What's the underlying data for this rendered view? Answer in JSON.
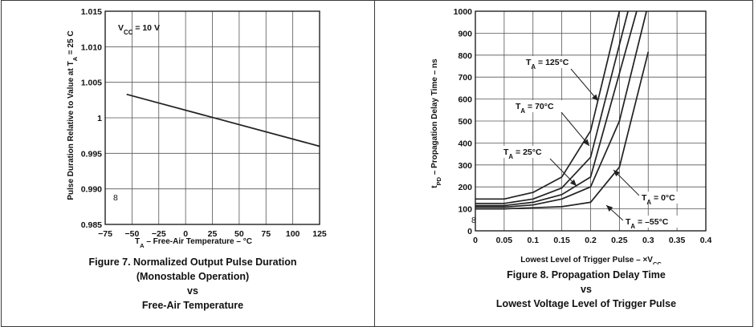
{
  "chart_data": [
    {
      "type": "line",
      "caption": [
        "Figure 7. Normalized Output Pulse Duration",
        "(Monostable Operation)",
        "vs",
        "Free-Air Temperature"
      ],
      "xlabel": "T_A – Free-Air Temperature – °C",
      "ylabel": "Pulse Duration Relative to Value at T_A = 25 C",
      "xlim": [
        -75,
        125
      ],
      "ylim": [
        0.985,
        1.015
      ],
      "xticks": [
        -75,
        -50,
        -25,
        0,
        25,
        50,
        75,
        100,
        125
      ],
      "xtick_labels": [
        "−75",
        "−50",
        "−25",
        "0",
        "25",
        "50",
        "75",
        "100",
        "125"
      ],
      "yticks": [
        0.985,
        0.99,
        0.995,
        1.0,
        1.005,
        1.01,
        1.015
      ],
      "ytick_labels": [
        "0.985",
        "0.990",
        "0.995",
        "1",
        "1.005",
        "1.010",
        "1.015"
      ],
      "grid": true,
      "annotations": [
        {
          "text": "V_CC = 10 V"
        },
        {
          "text": "8"
        }
      ],
      "series": [
        {
          "x": [
            -55,
            125
          ],
          "values": [
            1.0033,
            0.996
          ]
        }
      ]
    },
    {
      "type": "line",
      "caption": [
        "Figure 8. Propagation Delay Time",
        "vs",
        "Lowest Voltage Level of Trigger Pulse"
      ],
      "xlabel": "Lowest Level of Trigger Pulse – ×V_CC",
      "ylabel": "t_PD – Propagation Delay Time – ns",
      "xlim": [
        0,
        0.4
      ],
      "ylim": [
        0,
        1000
      ],
      "xticks": [
        0,
        0.05,
        0.1,
        0.15,
        0.2,
        0.25,
        0.3,
        0.35,
        0.4
      ],
      "xtick_labels": [
        "0",
        "0.05",
        "0.1",
        "0.15",
        "0.2",
        "0.25",
        "0.3",
        "0.35",
        "0.4"
      ],
      "yticks": [
        0,
        100,
        200,
        300,
        400,
        500,
        600,
        700,
        800,
        900,
        1000
      ],
      "ytick_labels": [
        "0",
        "100",
        "200",
        "300",
        "400",
        "500",
        "600",
        "700",
        "800",
        "900",
        "1000"
      ],
      "grid": true,
      "annotations": [
        {
          "text": "8"
        }
      ],
      "series": [
        {
          "name": "T_A = 125°C",
          "label_pos": "upper",
          "x": [
            0,
            0.05,
            0.1,
            0.15,
            0.2,
            0.25
          ],
          "values": [
            145,
            145,
            175,
            245,
            455,
            1000
          ]
        },
        {
          "name": "T_A = 70°C",
          "label_pos": "upper-mid",
          "x": [
            0,
            0.05,
            0.1,
            0.15,
            0.2,
            0.265
          ],
          "values": [
            125,
            125,
            145,
            195,
            335,
            1000
          ]
        },
        {
          "name": "T_A = 25°C",
          "label_pos": "mid",
          "x": [
            0,
            0.05,
            0.1,
            0.15,
            0.2,
            0.28
          ],
          "values": [
            115,
            115,
            130,
            165,
            245,
            1000
          ]
        },
        {
          "name": "T_A = 0°C",
          "label_pos": "lower-right",
          "x": [
            0,
            0.05,
            0.1,
            0.15,
            0.2,
            0.25,
            0.297
          ],
          "values": [
            108,
            108,
            118,
            145,
            200,
            500,
            1000
          ]
        },
        {
          "name": "T_A = –55°C",
          "label_pos": "lower",
          "x": [
            0,
            0.05,
            0.1,
            0.15,
            0.2,
            0.25,
            0.3
          ],
          "values": [
            100,
            100,
            105,
            110,
            130,
            290,
            815
          ]
        }
      ]
    }
  ]
}
